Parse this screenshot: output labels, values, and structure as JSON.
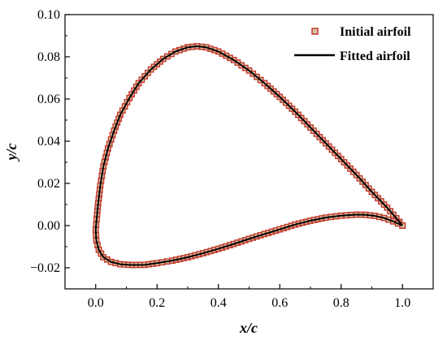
{
  "chart_data": {
    "type": "scatter",
    "xlabel": "x/c",
    "ylabel": "y/c",
    "xlim": [
      -0.1,
      1.1
    ],
    "ylim": [
      -0.03,
      0.1
    ],
    "xticks": [
      0.0,
      0.2,
      0.4,
      0.6,
      0.8,
      1.0
    ],
    "xtick_labels": [
      "0.0",
      "0.2",
      "0.4",
      "0.6",
      "0.8",
      "1.0"
    ],
    "yticks": [
      -0.02,
      0.0,
      0.02,
      0.04,
      0.06,
      0.08,
      0.1
    ],
    "ytick_labels": [
      "−0.02",
      "0.00",
      "0.02",
      "0.04",
      "0.06",
      "0.08",
      "0.10"
    ],
    "grid": false,
    "legend_position": "top-right",
    "series": [
      {
        "name": "Initial airfoil",
        "style": "square-markers",
        "color": "#c0392b",
        "points": [
          [
            1.0,
            0.0
          ],
          [
            0.98,
            0.0035
          ],
          [
            0.95,
            0.0085
          ],
          [
            0.9,
            0.016
          ],
          [
            0.85,
            0.024
          ],
          [
            0.8,
            0.0315
          ],
          [
            0.75,
            0.039
          ],
          [
            0.7,
            0.0465
          ],
          [
            0.65,
            0.054
          ],
          [
            0.6,
            0.061
          ],
          [
            0.55,
            0.0675
          ],
          [
            0.5,
            0.0735
          ],
          [
            0.45,
            0.0785
          ],
          [
            0.4,
            0.0825
          ],
          [
            0.36,
            0.0845
          ],
          [
            0.33,
            0.085
          ],
          [
            0.3,
            0.0845
          ],
          [
            0.26,
            0.0825
          ],
          [
            0.22,
            0.079
          ],
          [
            0.18,
            0.074
          ],
          [
            0.14,
            0.0675
          ],
          [
            0.11,
            0.0605
          ],
          [
            0.08,
            0.0525
          ],
          [
            0.06,
            0.045
          ],
          [
            0.04,
            0.0365
          ],
          [
            0.025,
            0.028
          ],
          [
            0.015,
            0.019
          ],
          [
            0.008,
            0.0105
          ],
          [
            0.003,
            0.003
          ],
          [
            0.0,
            -0.002
          ],
          [
            0.002,
            -0.007
          ],
          [
            0.01,
            -0.0115
          ],
          [
            0.025,
            -0.015
          ],
          [
            0.05,
            -0.0172
          ],
          [
            0.08,
            -0.0183
          ],
          [
            0.12,
            -0.0187
          ],
          [
            0.16,
            -0.0186
          ],
          [
            0.2,
            -0.0178
          ],
          [
            0.25,
            -0.0166
          ],
          [
            0.3,
            -0.015
          ],
          [
            0.35,
            -0.0131
          ],
          [
            0.4,
            -0.011
          ],
          [
            0.45,
            -0.0087
          ],
          [
            0.5,
            -0.0063
          ],
          [
            0.55,
            -0.004
          ],
          [
            0.6,
            -0.0018
          ],
          [
            0.65,
            0.0005
          ],
          [
            0.7,
            0.0023
          ],
          [
            0.75,
            0.0038
          ],
          [
            0.8,
            0.0047
          ],
          [
            0.85,
            0.0052
          ],
          [
            0.88,
            0.0051
          ],
          [
            0.91,
            0.0046
          ],
          [
            0.94,
            0.0036
          ],
          [
            0.97,
            0.002
          ],
          [
            1.0,
            0.0
          ]
        ]
      },
      {
        "name": "Fitted airfoil",
        "style": "line",
        "color": "#000000",
        "points": [
          [
            1.0,
            0.0
          ],
          [
            0.98,
            0.0035
          ],
          [
            0.95,
            0.0085
          ],
          [
            0.9,
            0.016
          ],
          [
            0.85,
            0.024
          ],
          [
            0.8,
            0.0315
          ],
          [
            0.75,
            0.039
          ],
          [
            0.7,
            0.0465
          ],
          [
            0.65,
            0.054
          ],
          [
            0.6,
            0.061
          ],
          [
            0.55,
            0.0675
          ],
          [
            0.5,
            0.0735
          ],
          [
            0.45,
            0.0785
          ],
          [
            0.4,
            0.0825
          ],
          [
            0.36,
            0.0845
          ],
          [
            0.33,
            0.085
          ],
          [
            0.3,
            0.0845
          ],
          [
            0.26,
            0.0825
          ],
          [
            0.22,
            0.079
          ],
          [
            0.18,
            0.074
          ],
          [
            0.14,
            0.0675
          ],
          [
            0.11,
            0.0605
          ],
          [
            0.08,
            0.0525
          ],
          [
            0.06,
            0.045
          ],
          [
            0.04,
            0.0365
          ],
          [
            0.025,
            0.028
          ],
          [
            0.015,
            0.019
          ],
          [
            0.008,
            0.0105
          ],
          [
            0.003,
            0.003
          ],
          [
            0.0,
            -0.002
          ],
          [
            0.002,
            -0.007
          ],
          [
            0.01,
            -0.0115
          ],
          [
            0.025,
            -0.015
          ],
          [
            0.05,
            -0.0172
          ],
          [
            0.08,
            -0.0183
          ],
          [
            0.12,
            -0.0187
          ],
          [
            0.16,
            -0.0186
          ],
          [
            0.2,
            -0.0178
          ],
          [
            0.25,
            -0.0166
          ],
          [
            0.3,
            -0.015
          ],
          [
            0.35,
            -0.0131
          ],
          [
            0.4,
            -0.011
          ],
          [
            0.45,
            -0.0087
          ],
          [
            0.5,
            -0.0063
          ],
          [
            0.55,
            -0.004
          ],
          [
            0.6,
            -0.0018
          ],
          [
            0.65,
            0.0005
          ],
          [
            0.7,
            0.0023
          ],
          [
            0.75,
            0.0038
          ],
          [
            0.8,
            0.0047
          ],
          [
            0.85,
            0.0052
          ],
          [
            0.88,
            0.0051
          ],
          [
            0.91,
            0.0046
          ],
          [
            0.94,
            0.0036
          ],
          [
            0.97,
            0.002
          ],
          [
            1.0,
            0.0
          ]
        ]
      }
    ]
  }
}
